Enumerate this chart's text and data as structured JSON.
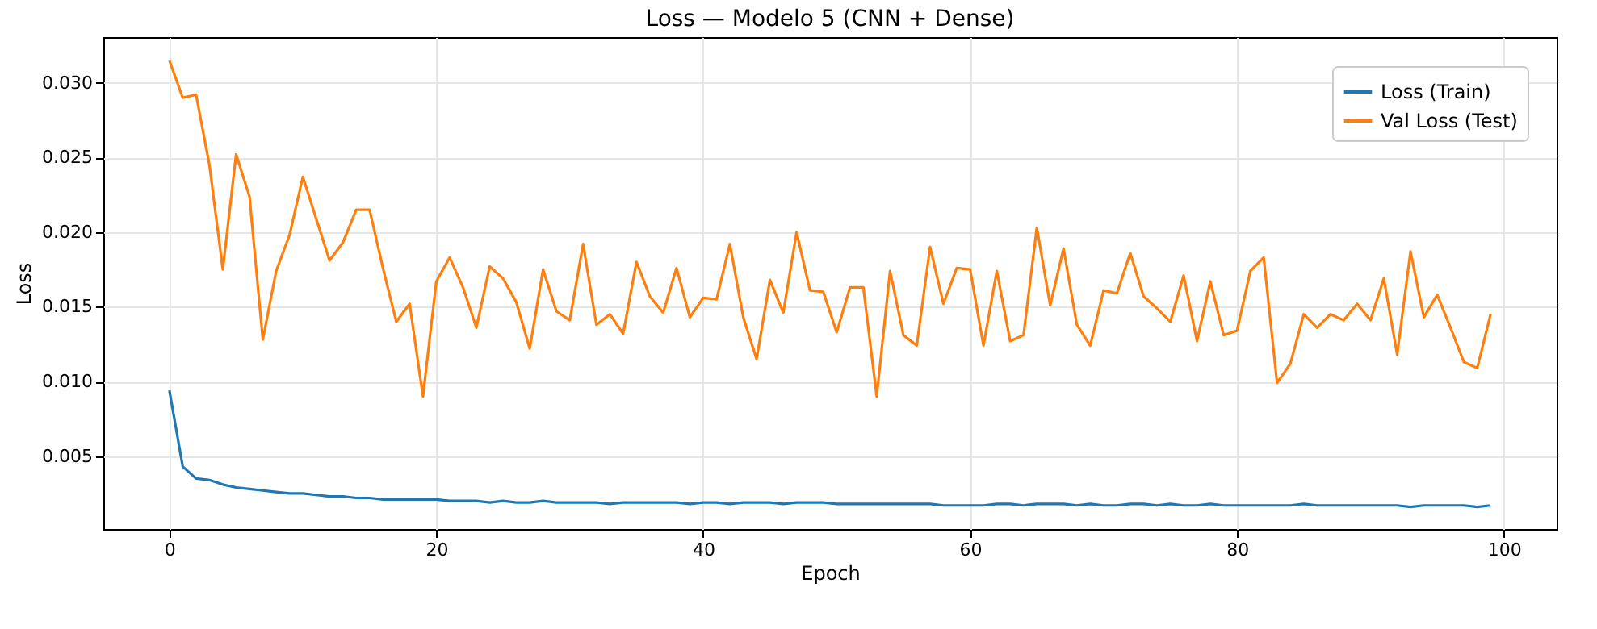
{
  "chart_data": {
    "type": "line",
    "title": "Loss — Modelo 5 (CNN + Dense)",
    "xlabel": "Epoch",
    "ylabel": "Loss",
    "x": [
      0,
      1,
      2,
      3,
      4,
      5,
      6,
      7,
      8,
      9,
      10,
      11,
      12,
      13,
      14,
      15,
      16,
      17,
      18,
      19,
      20,
      21,
      22,
      23,
      24,
      25,
      26,
      27,
      28,
      29,
      30,
      31,
      32,
      33,
      34,
      35,
      36,
      37,
      38,
      39,
      40,
      41,
      42,
      43,
      44,
      45,
      46,
      47,
      48,
      49,
      50,
      51,
      52,
      53,
      54,
      55,
      56,
      57,
      58,
      59,
      60,
      61,
      62,
      63,
      64,
      65,
      66,
      67,
      68,
      69,
      70,
      71,
      72,
      73,
      74,
      75,
      76,
      77,
      78,
      79,
      80,
      81,
      82,
      83,
      84,
      85,
      86,
      87,
      88,
      89,
      90,
      91,
      92,
      93,
      94,
      95,
      96,
      97,
      98,
      99
    ],
    "series": [
      {
        "name": "Loss (Train)",
        "color": "#1f77b4",
        "values": [
          0.0094,
          0.0043,
          0.0035,
          0.0034,
          0.0031,
          0.0029,
          0.0028,
          0.0027,
          0.0026,
          0.0025,
          0.0025,
          0.0024,
          0.0023,
          0.0023,
          0.0022,
          0.0022,
          0.0021,
          0.0021,
          0.0021,
          0.0021,
          0.0021,
          0.002,
          0.002,
          0.002,
          0.0019,
          0.002,
          0.0019,
          0.0019,
          0.002,
          0.0019,
          0.0019,
          0.0019,
          0.0019,
          0.0018,
          0.0019,
          0.0019,
          0.0019,
          0.0019,
          0.0019,
          0.0018,
          0.0019,
          0.0019,
          0.0018,
          0.0019,
          0.0019,
          0.0019,
          0.0018,
          0.0019,
          0.0019,
          0.0019,
          0.0018,
          0.0018,
          0.0018,
          0.0018,
          0.0018,
          0.0018,
          0.0018,
          0.0018,
          0.0017,
          0.0017,
          0.0017,
          0.0017,
          0.0018,
          0.0018,
          0.0017,
          0.0018,
          0.0018,
          0.0018,
          0.0017,
          0.0018,
          0.0017,
          0.0017,
          0.0018,
          0.0018,
          0.0017,
          0.0018,
          0.0017,
          0.0017,
          0.0018,
          0.0017,
          0.0017,
          0.0017,
          0.0017,
          0.0017,
          0.0017,
          0.0018,
          0.0017,
          0.0017,
          0.0017,
          0.0017,
          0.0017,
          0.0017,
          0.0017,
          0.0016,
          0.0017,
          0.0017,
          0.0017,
          0.0017,
          0.0016,
          0.0017
        ]
      },
      {
        "name": "Val Loss (Test)",
        "color": "#ff7f0e",
        "values": [
          0.0315,
          0.029,
          0.0292,
          0.0245,
          0.0175,
          0.0252,
          0.0224,
          0.0128,
          0.0174,
          0.0198,
          0.0237,
          0.0209,
          0.0181,
          0.0193,
          0.0215,
          0.0215,
          0.0176,
          0.014,
          0.0152,
          0.009,
          0.0167,
          0.0183,
          0.0163,
          0.0136,
          0.0177,
          0.0169,
          0.0153,
          0.0122,
          0.0175,
          0.0147,
          0.0141,
          0.0192,
          0.0138,
          0.0145,
          0.0132,
          0.018,
          0.0157,
          0.0146,
          0.0176,
          0.0143,
          0.0156,
          0.0155,
          0.0192,
          0.0143,
          0.0115,
          0.0168,
          0.0146,
          0.02,
          0.0161,
          0.016,
          0.0133,
          0.0163,
          0.0163,
          0.009,
          0.0174,
          0.0131,
          0.0124,
          0.019,
          0.0152,
          0.0176,
          0.0175,
          0.0124,
          0.0174,
          0.0127,
          0.0131,
          0.0203,
          0.0151,
          0.0189,
          0.0138,
          0.0124,
          0.0161,
          0.0159,
          0.0186,
          0.0157,
          0.0149,
          0.014,
          0.0171,
          0.0127,
          0.0167,
          0.0131,
          0.0134,
          0.0174,
          0.0183,
          0.0099,
          0.0112,
          0.0145,
          0.0136,
          0.0145,
          0.0141,
          0.0152,
          0.0141,
          0.0169,
          0.0118,
          0.0187,
          0.0143,
          0.0158,
          0.0136,
          0.0113,
          0.0109,
          0.0145
        ]
      }
    ],
    "xlim": [
      -4.95,
      103.95
    ],
    "xticks": [
      0,
      20,
      40,
      60,
      80,
      100
    ],
    "ylim": [
      0.00012,
      0.03306
    ],
    "yticks": [
      {
        "value": 0.005,
        "label": "0.005"
      },
      {
        "value": 0.01,
        "label": "0.010"
      },
      {
        "value": 0.015,
        "label": "0.015"
      },
      {
        "value": 0.02,
        "label": "0.020"
      },
      {
        "value": 0.025,
        "label": "0.025"
      },
      {
        "value": 0.03,
        "label": "0.030"
      }
    ],
    "grid": true,
    "legend": "top right",
    "line_style": "solid"
  }
}
